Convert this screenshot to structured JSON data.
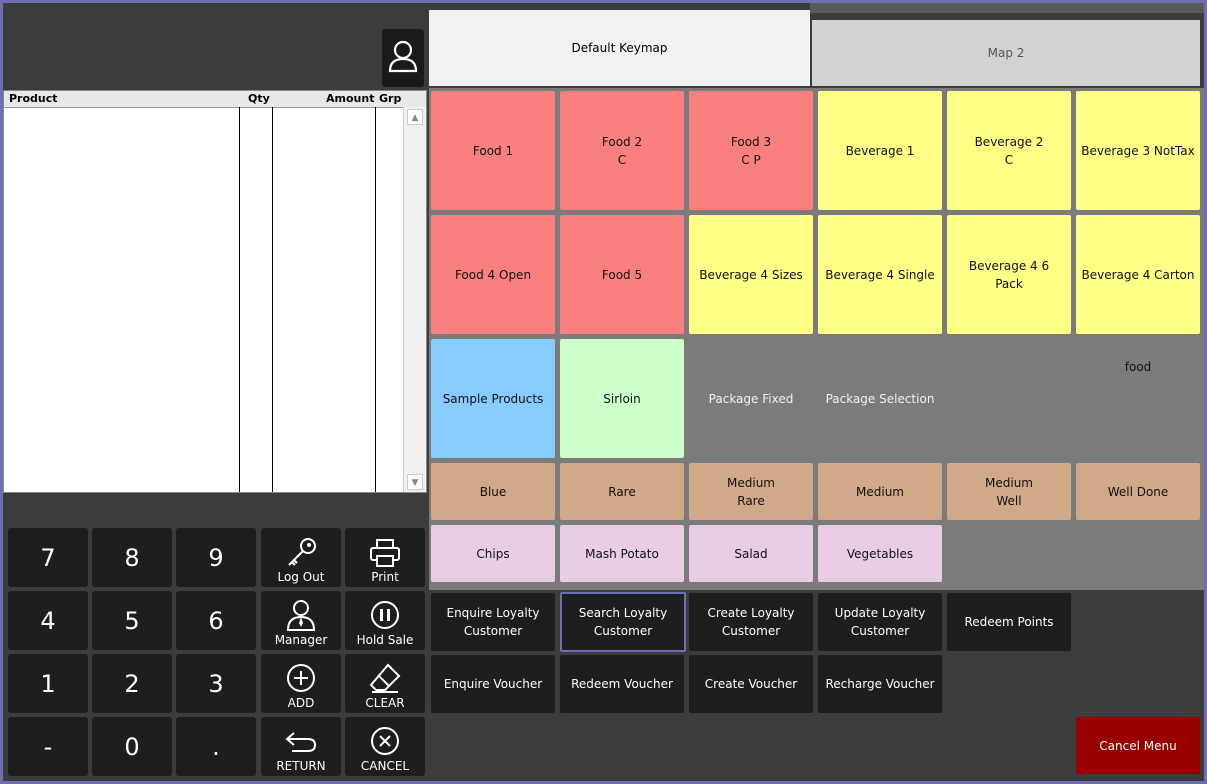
{
  "grid": {
    "col_product": "Product",
    "col_qty": "Qty",
    "col_amount": "Amount",
    "col_grp": "Grp"
  },
  "keypad": {
    "k7": "7",
    "k8": "8",
    "k9": "9",
    "k4": "4",
    "k5": "5",
    "k6": "6",
    "k1": "1",
    "k2": "2",
    "k3": "3",
    "kminus": "-",
    "k0": "0",
    "kdot": "."
  },
  "functions": {
    "logout": "Log Out",
    "print": "Print",
    "manager": "Manager",
    "hold": "Hold Sale",
    "add": "ADD",
    "clear": "CLEAR",
    "return": "RETURN",
    "cancel": "CANCEL"
  },
  "tabs": {
    "active": "Default Keymap",
    "inactive": "Map 2"
  },
  "keys": {
    "food1": "Food 1",
    "food2": "Food 2\nC",
    "food3": "Food 3\nC P",
    "bev1": "Beverage 1",
    "bev2": "Beverage 2\nC",
    "bev3": "Beverage 3 NotTax",
    "food4": "Food 4 Open",
    "food5": "Food 5",
    "bev4sizes": "Beverage 4 Sizes",
    "bev4single": "Beverage 4 Single",
    "bev46pack": "Beverage 4 6\nPack",
    "bev4carton": "Beverage 4 Carton",
    "sample": "Sample Products",
    "sirloin": "Sirloin",
    "pkgfixed": "Package Fixed",
    "pkgsel": "Package Selection",
    "food_label": "food",
    "blue": "Blue",
    "rare": "Rare",
    "medrare": "Medium\nRare",
    "medium": "Medium",
    "medwell": "Medium\nWell",
    "welldone": "Well Done",
    "chips": "Chips",
    "mash": "Mash Potato",
    "salad": "Salad",
    "veg": "Vegetables"
  },
  "loyalty": {
    "enquire": "Enquire Loyalty\nCustomer",
    "search": "Search Loyalty\nCustomer",
    "create": "Create Loyalty\nCustomer",
    "update": "Update Loyalty\nCustomer",
    "redeem_points": "Redeem Points",
    "enq_voucher": "Enquire Voucher",
    "redeem_voucher": "Redeem Voucher",
    "create_voucher": "Create Voucher",
    "recharge_voucher": "Recharge Voucher"
  },
  "cancel_menu": "Cancel Menu",
  "colors": {
    "food": "#fa8080",
    "beverage": "#ffff88",
    "sample": "#88ccff",
    "sirloin": "#ccffcc",
    "cook": "#d0aa88",
    "sides": "#e8cde5",
    "cancel_menu": "#990000",
    "selection_border": "#6e6eb4"
  }
}
